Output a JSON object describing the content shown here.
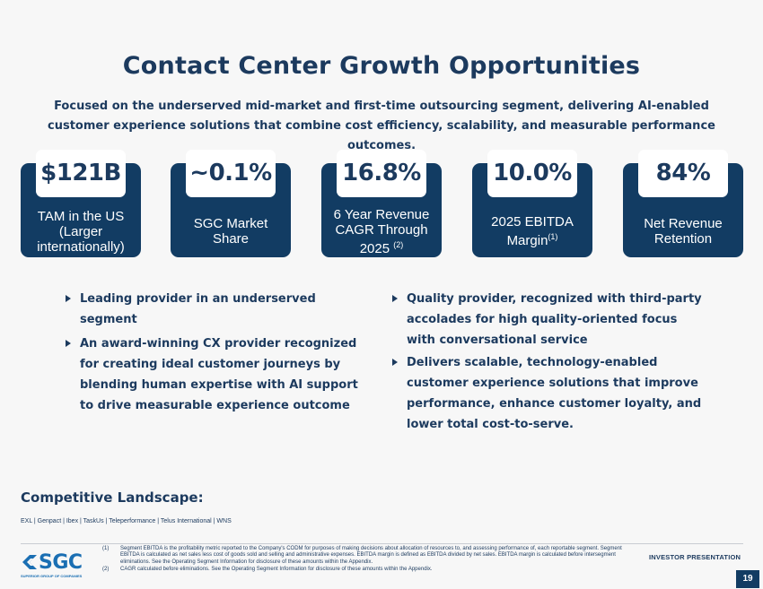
{
  "title": "Contact Center Growth Opportunities",
  "subtitle": "Focused on the underserved mid-market and first-time outsourcing segment, delivering AI-enabled customer experience solutions that combine cost efficiency, scalability, and measurable performance outcomes.",
  "stats": [
    {
      "value": "$121B",
      "label_line1": "TAM in the US",
      "label_line2": "(Larger internationally)",
      "sup": ""
    },
    {
      "value": "~0.1%",
      "label_line1": "SGC Market",
      "label_line2": "Share",
      "sup": ""
    },
    {
      "value": "16.8%",
      "label_line1": "6 Year Revenue CAGR Through",
      "label_line2": "2025",
      "sup": "(2)"
    },
    {
      "value": "10.0%",
      "label_line1": "2025 EBITDA",
      "label_line2": "Margin",
      "sup": "(1)"
    },
    {
      "value": "84%",
      "label_line1": "Net Revenue",
      "label_line2": "Retention",
      "sup": ""
    }
  ],
  "bullets_left": [
    "Leading provider in an underserved segment",
    "An award-winning CX provider recognized for creating ideal customer journeys by blending human expertise with AI support to drive measurable experience outcome"
  ],
  "bullets_right": [
    "Quality provider, recognized with third-party accolades for high quality-oriented focus with conversational service",
    "Delivers scalable, technology-enabled customer experience solutions that improve performance, enhance customer loyalty, and lower total cost-to-serve."
  ],
  "competitive": {
    "heading": "Competitive Landscape:",
    "list": "EXL | Genpact | Ibex | TaskUs | Teleperformance | Telus International | WNS"
  },
  "logo": {
    "name": "SGC",
    "tagline": "SUPERIOR GROUP OF COMPANIES"
  },
  "footnotes": [
    {
      "num": "(1)",
      "text": "Segment EBITDA is the profitability metric reported to the Company's CODM for purposes of making decisions about allocation of resources to, and assessing performance of, each reportable segment. Segment EBITDA is calculated as net sales less cost of goods sold and selling and administrative expenses. EBITDA margin is defined as EBITDA divided by net sales. EBITDA margin is calculated before intersegment eliminations. See the Operating Segment Information for disclosure of these amounts within the Appendix."
    },
    {
      "num": "(2)",
      "text": "CAGR calculated before eliminations. See the Operating Segment Information for disclosure of these amounts within the Appendix."
    }
  ],
  "investor_label": "INVESTOR PRESENTATION",
  "page_number": "19",
  "colors": {
    "navy": "#123c63",
    "text": "#1c3a5e",
    "logo_blue": "#1b6fb3",
    "background": "#f7f7f7"
  }
}
